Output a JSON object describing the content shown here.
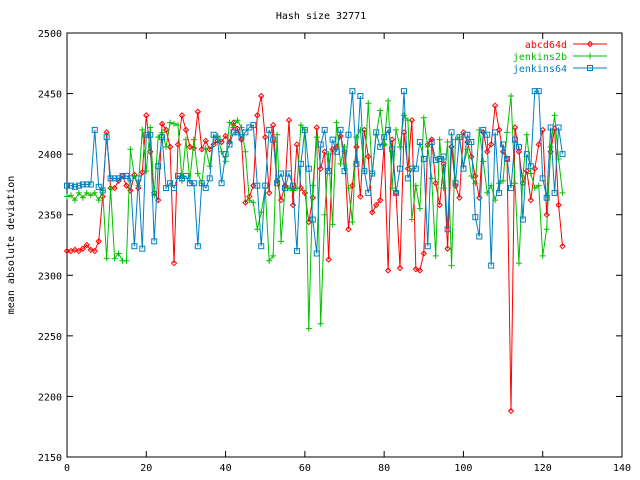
{
  "chart_data": {
    "type": "line",
    "title": "Hash size 32771",
    "xlabel": "",
    "ylabel": "mean absolute deviation",
    "xlim": [
      0,
      140
    ],
    "ylim": [
      2150,
      2500
    ],
    "xticks": [
      0,
      20,
      40,
      60,
      80,
      100,
      120,
      140
    ],
    "yticks": [
      2150,
      2200,
      2250,
      2300,
      2350,
      2400,
      2450,
      2500
    ],
    "grid": false,
    "legend_position": "top-right",
    "series": [
      {
        "name": "abcd64d",
        "color": "#ff0000",
        "marker": "diamond",
        "values": [
          2320,
          2320,
          2321,
          2320,
          2322,
          2325,
          2321,
          2320,
          2328,
          2365,
          2418,
          2372,
          2372,
          2378,
          2382,
          2374,
          2370,
          2383,
          2372,
          2385,
          2432,
          2402,
          2368,
          2362,
          2425,
          2420,
          2406,
          2310,
          2408,
          2432,
          2420,
          2406,
          2405,
          2435,
          2404,
          2411,
          2404,
          2408,
          2411,
          2410,
          2415,
          2410,
          2426,
          2421,
          2412,
          2360,
          2365,
          2374,
          2432,
          2448,
          2414,
          2368,
          2424,
          2378,
          2362,
          2374,
          2428,
          2358,
          2408,
          2372,
          2368,
          2344,
          2364,
          2422,
          2388,
          2402,
          2313,
          2404,
          2406,
          2415,
          2402,
          2338,
          2374,
          2406,
          2365,
          2420,
          2398,
          2352,
          2358,
          2362,
          2408,
          2304,
          2412,
          2368,
          2306,
          2418,
          2388,
          2428,
          2305,
          2304,
          2318,
          2408,
          2412,
          2376,
          2358,
          2392,
          2322,
          2406,
          2374,
          2364,
          2418,
          2410,
          2398,
          2382,
          2364,
          2418,
          2402,
          2408,
          2440,
          2420,
          2402,
          2396,
          2188,
          2422,
          2402,
          2376,
          2386,
          2362,
          2388,
          2408,
          2420,
          2350,
          2402,
          2421,
          2358,
          2324
        ]
      },
      {
        "name": "jenkins2b",
        "color": "#00c000",
        "marker": "plus",
        "values": [
          2365,
          2366,
          2362,
          2368,
          2364,
          2368,
          2366,
          2368,
          2362,
          2370,
          2314,
          2372,
          2314,
          2318,
          2312,
          2312,
          2404,
          2382,
          2374,
          2420,
          2386,
          2422,
          2366,
          2414,
          2418,
          2406,
          2426,
          2425,
          2424,
          2378,
          2412,
          2378,
          2412,
          2384,
          2376,
          2405,
          2390,
          2414,
          2415,
          2402,
          2394,
          2426,
          2422,
          2428,
          2422,
          2402,
          2362,
          2360,
          2338,
          2352,
          2372,
          2312,
          2316,
          2416,
          2328,
          2372,
          2372,
          2370,
          2372,
          2424,
          2420,
          2256,
          2374,
          2414,
          2260,
          2350,
          2400,
          2342,
          2426,
          2392,
          2406,
          2372,
          2344,
          2414,
          2420,
          2386,
          2442,
          2384,
          2416,
          2436,
          2408,
          2444,
          2372,
          2420,
          2406,
          2432,
          2428,
          2346,
          2374,
          2355,
          2430,
          2406,
          2380,
          2316,
          2412,
          2372,
          2410,
          2308,
          2412,
          2414,
          2390,
          2404,
          2382,
          2376,
          2420,
          2394,
          2368,
          2374,
          2362,
          2376,
          2378,
          2418,
          2448,
          2376,
          2310,
          2382,
          2416,
          2384,
          2372,
          2374,
          2316,
          2338,
          2406,
          2432,
          2396,
          2368
        ]
      },
      {
        "name": "jenkins64",
        "color": "#0080c0",
        "marker": "square",
        "values": [
          2374,
          2374,
          2373,
          2374,
          2375,
          2375,
          2375,
          2420,
          2373,
          2370,
          2414,
          2380,
          2380,
          2380,
          2382,
          2382,
          2380,
          2324,
          2380,
          2322,
          2416,
          2416,
          2328,
          2390,
          2414,
          2372,
          2376,
          2372,
          2382,
          2380,
          2382,
          2376,
          2376,
          2324,
          2376,
          2372,
          2380,
          2416,
          2412,
          2376,
          2400,
          2408,
          2418,
          2418,
          2414,
          2418,
          2422,
          2424,
          2374,
          2324,
          2374,
          2420,
          2412,
          2376,
          2384,
          2372,
          2384,
          2374,
          2320,
          2392,
          2420,
          2388,
          2346,
          2318,
          2408,
          2420,
          2386,
          2412,
          2402,
          2420,
          2386,
          2416,
          2452,
          2392,
          2448,
          2386,
          2368,
          2384,
          2418,
          2406,
          2414,
          2420,
          2404,
          2368,
          2388,
          2452,
          2380,
          2388,
          2388,
          2410,
          2396,
          2324,
          2410,
          2395,
          2396,
          2398,
          2338,
          2418,
          2376,
          2414,
          2388,
          2416,
          2410,
          2348,
          2332,
          2420,
          2416,
          2308,
          2418,
          2368,
          2408,
          2396,
          2372,
          2412,
          2406,
          2346,
          2400,
          2390,
          2452,
          2452,
          2380,
          2364,
          2422,
          2368,
          2422,
          2400
        ]
      }
    ]
  }
}
